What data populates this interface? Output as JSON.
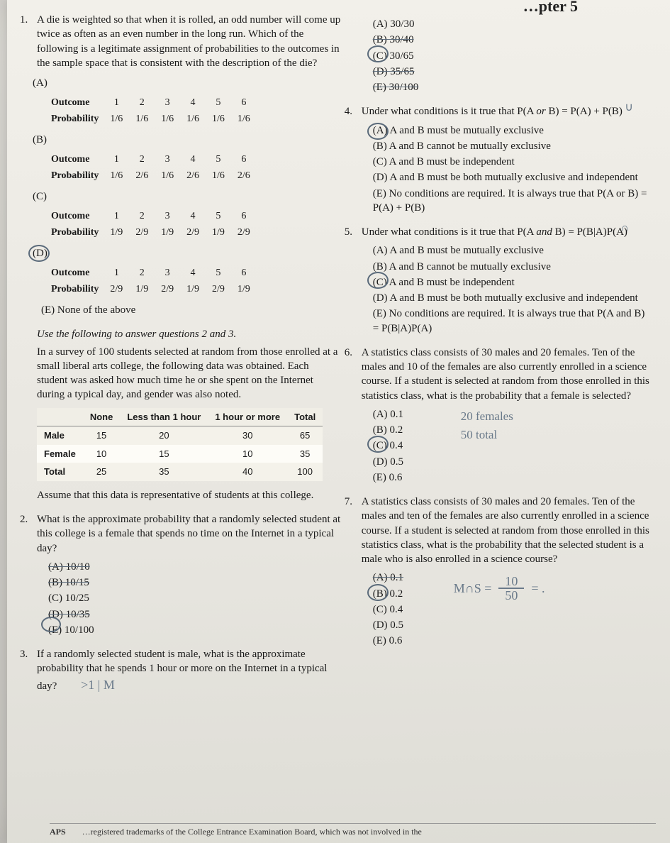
{
  "chapter": "…pter 5",
  "q1": {
    "num": "1.",
    "text": "A die is weighted so that when it is rolled, an odd number will come up twice as often as an even number in the long run. Which of the following is a legitimate assignment of probabilities to the outcomes in the sample space that is consistent with the description of the die?",
    "rowlabels": [
      "Outcome",
      "Probability"
    ],
    "outcomes": [
      "1",
      "2",
      "3",
      "4",
      "5",
      "6"
    ],
    "tables": {
      "A": [
        "1/6",
        "1/6",
        "1/6",
        "1/6",
        "1/6",
        "1/6"
      ],
      "B": [
        "1/6",
        "2/6",
        "1/6",
        "2/6",
        "1/6",
        "2/6"
      ],
      "C": [
        "1/9",
        "2/9",
        "1/9",
        "2/9",
        "1/9",
        "2/9"
      ],
      "D": [
        "2/9",
        "1/9",
        "2/9",
        "1/9",
        "2/9",
        "1/9"
      ]
    },
    "E": "(E) None of the above"
  },
  "passage": {
    "lead": "Use the following to answer questions 2 and 3.",
    "body": "In a survey of 100 students selected at random from those enrolled at a small liberal arts college, the following data was obtained. Each student was asked how much time he or she spent on the Internet during a typical day, and gender was also noted.",
    "table": {
      "cols": [
        "",
        "None",
        "Less than 1 hour",
        "1 hour or more",
        "Total"
      ],
      "rows": [
        [
          "Male",
          "15",
          "20",
          "30",
          "65"
        ],
        [
          "Female",
          "10",
          "15",
          "10",
          "35"
        ],
        [
          "Total",
          "25",
          "35",
          "40",
          "100"
        ]
      ]
    },
    "tail": "Assume that this data is representative of students at this college."
  },
  "q2": {
    "num": "2.",
    "text": "What is the approximate probability that a randomly selected student at this college is a female that spends no time on the Internet in a typical day?",
    "opts": [
      "(A) 10/10",
      "(B) 10/15",
      "(C) 10/25",
      "(D) 10/35",
      "(E) 10/100"
    ]
  },
  "q3": {
    "num": "3.",
    "text": "If a randomly selected student is male, what is the approximate probability that he spends 1 hour or more on the Internet in a typical day?",
    "opts": [
      "(A) 30/30",
      "(B) 30/40",
      "(C) 30/65",
      "(D) 35/65",
      "(E) 30/100"
    ],
    "hand": ">1 | M"
  },
  "q4": {
    "num": "4.",
    "text_a": "Under what conditions is it true that P(A ",
    "text_or": "or",
    "text_b": " B) = P(A) + P(B)",
    "hand_sym": "∪",
    "opts": [
      "(A) A and B must be mutually exclusive",
      "(B) A and B cannot be mutually exclusive",
      "(C) A and B must be independent",
      "(D) A and B must be both mutually exclusive and independent",
      "(E) No conditions are required. It is always true that P(A or B) = P(A) + P(B)"
    ]
  },
  "q5": {
    "num": "5.",
    "text_a": "Under what conditions is it true that P(A ",
    "text_and": "and",
    "text_b": " B) = P(B|A)P(A)",
    "hand_sym": "∩",
    "opts": [
      "(A) A and B must be mutually exclusive",
      "(B) A and B cannot be mutually exclusive",
      "(C) A and B must be independent",
      "(D) A and B must be both mutually exclusive and independent",
      "(E) No conditions are required. It is always true that P(A and B) = P(B|A)P(A)"
    ]
  },
  "q6": {
    "num": "6.",
    "text": "A statistics class consists of 30 males and 20 females. Ten of the males and 10 of the females are also currently enrolled in a science course. If a student is selected at random from those enrolled in this statistics class, what is the probability that a female is selected?",
    "opts": [
      "(A) 0.1",
      "(B) 0.2",
      "(C) 0.4",
      "(D) 0.5",
      "(E) 0.6"
    ],
    "hand1": "20 females",
    "hand2": "50 total"
  },
  "q7": {
    "num": "7.",
    "text": "A statistics class consists of 30 males and 20 females. Ten of the males and ten of the females are also currently enrolled in a science course. If a student is selected at random from those enrolled in this statistics class, what is the probability that the selected student is a male who is also enrolled in a science course?",
    "opts": [
      "(A) 0.1",
      "(B) 0.2",
      "(C) 0.4",
      "(D) 0.5",
      "(E) 0.6"
    ],
    "hand_l": "M∩S =",
    "hand_n": "10",
    "hand_d": "50",
    "hand_eq": "= ."
  },
  "footer": "…registered trademarks of the College Entrance Examination Board, which was not involved in the",
  "aps": "APS"
}
